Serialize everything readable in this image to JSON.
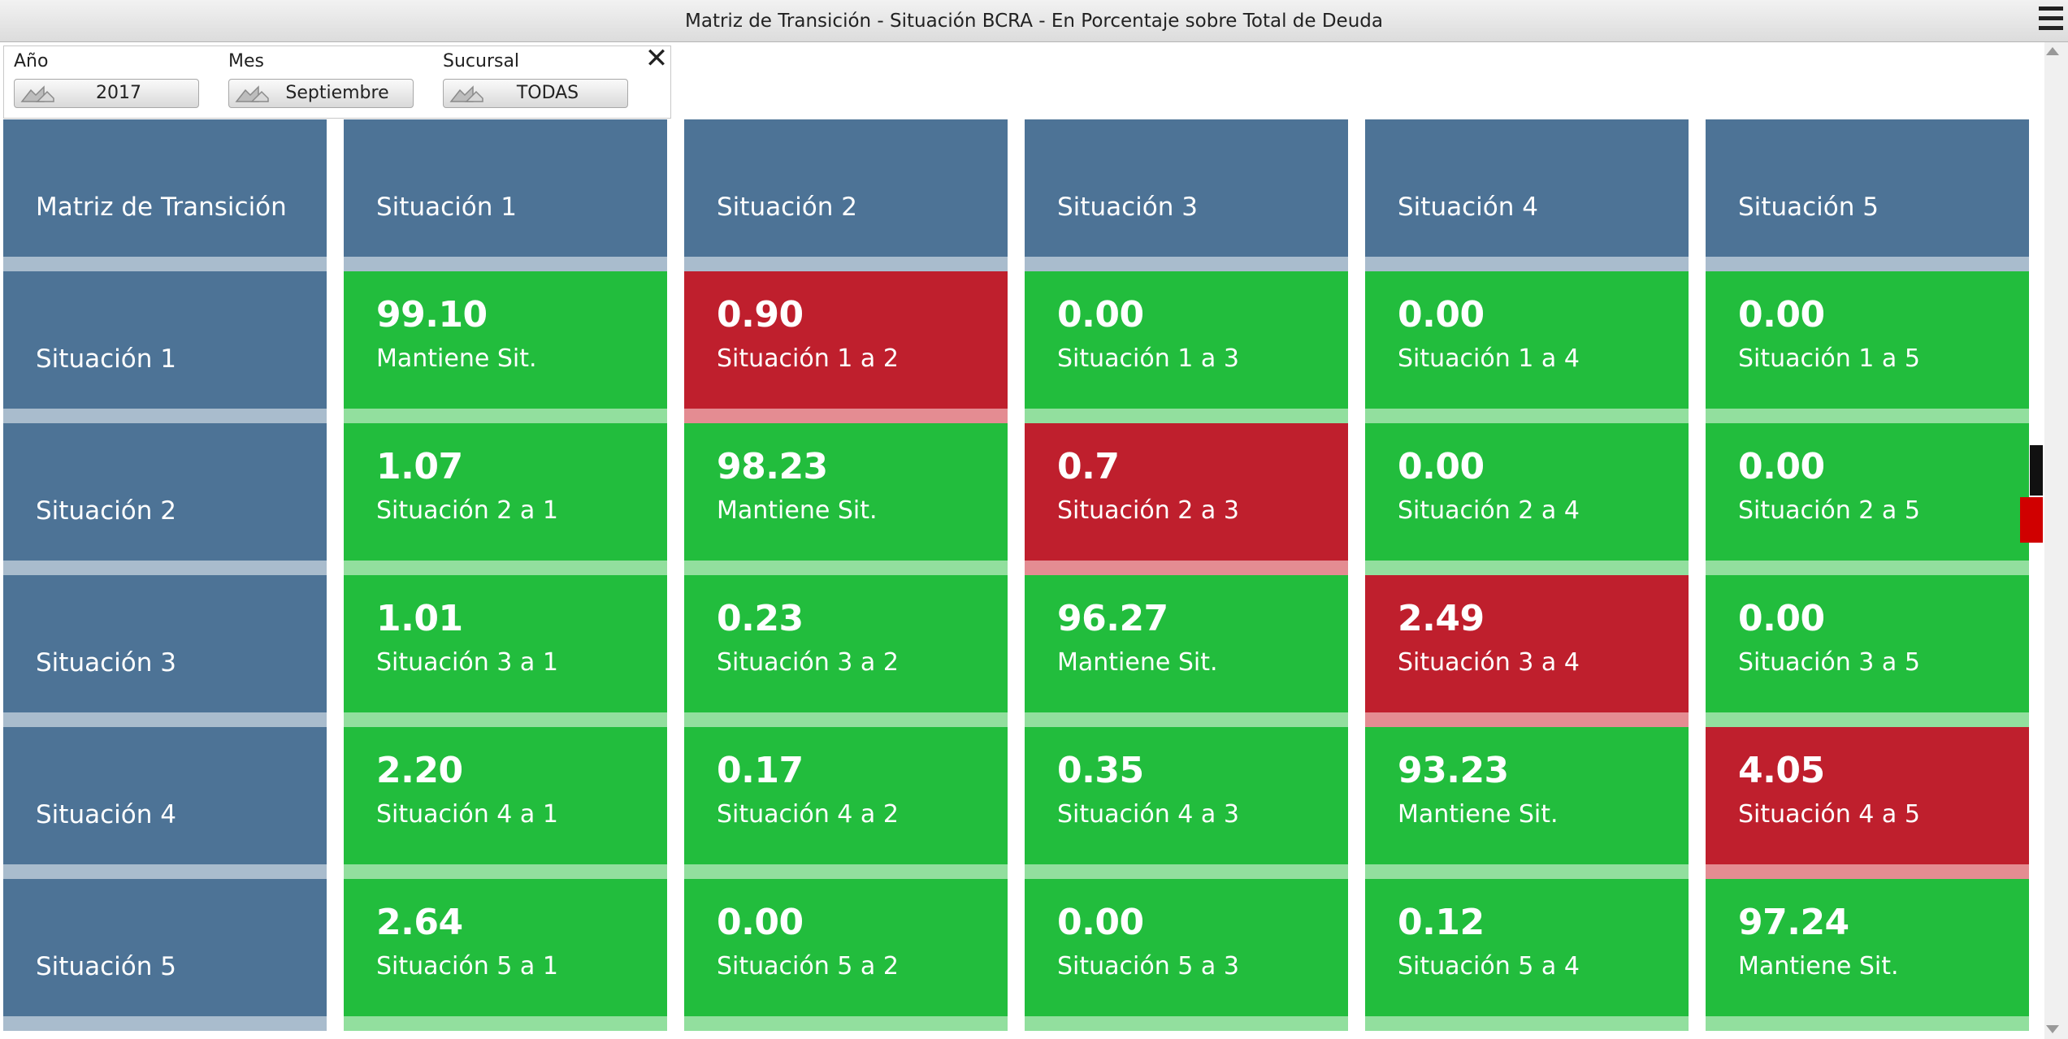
{
  "window": {
    "title": "Matriz de Transición - Situación BCRA - En Porcentaje sobre Total de Deuda"
  },
  "filters": {
    "year": {
      "label": "Año",
      "value": "2017"
    },
    "month": {
      "label": "Mes",
      "value": "Septiembre"
    },
    "branch": {
      "label": "Sucursal",
      "value": "TODAS"
    }
  },
  "matrix": {
    "corner": "Matriz de Transición",
    "columns": [
      "Situación 1",
      "Situación 2",
      "Situación 3",
      "Situación 4",
      "Situación 5"
    ],
    "rows": [
      {
        "label": "Situación 1",
        "cells": [
          {
            "value": "99.10",
            "caption": "Mantiene Sit.",
            "status": "ok"
          },
          {
            "value": "0.90",
            "caption": "Situación 1 a 2",
            "status": "bad"
          },
          {
            "value": "0.00",
            "caption": "Situación 1 a 3",
            "status": "ok"
          },
          {
            "value": "0.00",
            "caption": "Situación 1 a 4",
            "status": "ok"
          },
          {
            "value": "0.00",
            "caption": "Situación 1 a 5",
            "status": "ok"
          }
        ]
      },
      {
        "label": "Situación 2",
        "cells": [
          {
            "value": "1.07",
            "caption": "Situación 2 a 1",
            "status": "ok"
          },
          {
            "value": "98.23",
            "caption": "Mantiene Sit.",
            "status": "ok"
          },
          {
            "value": "0.7",
            "caption": "Situación 2 a 3",
            "status": "bad"
          },
          {
            "value": "0.00",
            "caption": "Situación 2 a 4",
            "status": "ok"
          },
          {
            "value": "0.00",
            "caption": "Situación 2 a 5",
            "status": "ok"
          }
        ]
      },
      {
        "label": "Situación 3",
        "cells": [
          {
            "value": "1.01",
            "caption": "Situación 3 a 1",
            "status": "ok"
          },
          {
            "value": "0.23",
            "caption": "Situación 3 a 2",
            "status": "ok"
          },
          {
            "value": "96.27",
            "caption": "Mantiene Sit.",
            "status": "ok"
          },
          {
            "value": "2.49",
            "caption": "Situación 3 a 4",
            "status": "bad"
          },
          {
            "value": "0.00",
            "caption": "Situación 3 a 5",
            "status": "ok"
          }
        ]
      },
      {
        "label": "Situación 4",
        "cells": [
          {
            "value": "2.20",
            "caption": "Situación 4 a 1",
            "status": "ok"
          },
          {
            "value": "0.17",
            "caption": "Situación 4 a 2",
            "status": "ok"
          },
          {
            "value": "0.35",
            "caption": "Situación 4 a 3",
            "status": "ok"
          },
          {
            "value": "93.23",
            "caption": "Mantiene Sit.",
            "status": "ok"
          },
          {
            "value": "4.05",
            "caption": "Situación 4 a 5",
            "status": "bad"
          }
        ]
      },
      {
        "label": "Situación 5",
        "cells": [
          {
            "value": "2.64",
            "caption": "Situación 5 a 1",
            "status": "ok"
          },
          {
            "value": "0.00",
            "caption": "Situación 5 a 2",
            "status": "ok"
          },
          {
            "value": "0.00",
            "caption": "Situación 5 a 3",
            "status": "ok"
          },
          {
            "value": "0.12",
            "caption": "Situación 5 a 4",
            "status": "ok"
          },
          {
            "value": "97.24",
            "caption": "Mantiene Sit.",
            "status": "ok"
          }
        ]
      }
    ]
  },
  "colors": {
    "header": "#4d7396",
    "ok": "#22bd3d",
    "bad": "#bf1f2d"
  },
  "icons": {
    "menu": "hamburger-menu-icon",
    "close": "close-icon",
    "filter": "filter-select-icon"
  }
}
